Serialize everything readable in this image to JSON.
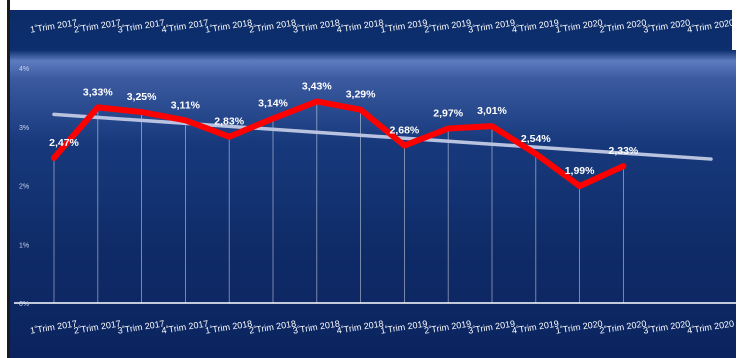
{
  "chart_data": {
    "type": "line",
    "categories": [
      "1ºTrim 2017",
      "2ºTrim 2017",
      "3ºTrim 2017",
      "4ºTrim 2017",
      "1ºTrim 2018",
      "2ºTrim 2018",
      "3ºTrim 2018",
      "4ºTrim 2018",
      "1ºTrim 2019",
      "2ºTrim 2019",
      "3ºTrim 2019",
      "4ºTrim 2019",
      "1ºTrim 2020",
      "2ºTrim 2020",
      "3ºTrim 2020",
      "4ºTrim 2020"
    ],
    "series": [
      {
        "values": [
          2.47,
          3.33,
          3.25,
          3.11,
          2.83,
          3.14,
          3.43,
          3.29,
          2.68,
          2.97,
          3.01,
          2.54,
          1.99,
          2.33,
          null,
          null
        ],
        "color": "#ff0000"
      }
    ],
    "trendline": {
      "start": 3.21,
      "end": 2.45,
      "color": "#b9c3e0"
    },
    "data_labels": [
      "2,47%",
      "3,33%",
      "3,25%",
      "3,11%",
      "2,83%",
      "3,14%",
      "3,43%",
      "3,29%",
      "2,68%",
      "2,97%",
      "3,01%",
      "2,54%",
      "1,99%",
      "2,33%"
    ],
    "y_ticks": [
      "0%",
      "1%",
      "2%",
      "3%",
      "4%"
    ],
    "ylim": [
      0,
      4
    ],
    "grid": true,
    "title": "",
    "xlabel": "",
    "ylabel": ""
  }
}
